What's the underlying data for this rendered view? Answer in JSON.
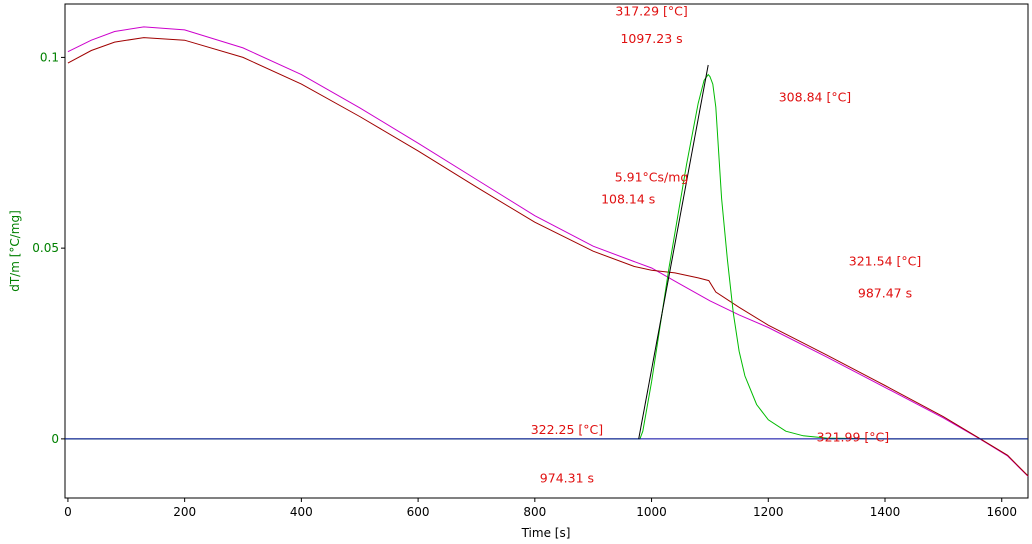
{
  "chart_data": {
    "type": "line",
    "xlabel": "Time [s]",
    "ylabel": "dT/m  [°C/mg]",
    "xlim": [
      -5,
      1645
    ],
    "ylim": [
      -0.0155,
      0.114
    ],
    "x_ticks": [
      0,
      200,
      400,
      600,
      800,
      1000,
      1200,
      1400,
      1600
    ],
    "y_ticks": [
      0,
      0.05,
      0.1
    ],
    "y_tick_labels": [
      "0",
      "0.05",
      "0.1"
    ],
    "grid": false,
    "colors": {
      "magenta": "#cc00cc",
      "darkred": "#a00000",
      "green": "#00bb00",
      "blue": "#0000a0",
      "black": "#000000",
      "annotation": "#e01010",
      "ytick": "#008000"
    },
    "series": [
      {
        "color": "#cc00cc",
        "x": [
          0,
          40,
          80,
          130,
          200,
          300,
          400,
          500,
          600,
          700,
          800,
          900,
          970,
          1000,
          1050,
          1100,
          1150,
          1200,
          1300,
          1400,
          1500,
          1560,
          1610,
          1645
        ],
        "y": [
          0.1015,
          0.1045,
          0.1068,
          0.108,
          0.1072,
          0.1025,
          0.0955,
          0.0868,
          0.0775,
          0.068,
          0.0585,
          0.0505,
          0.0465,
          0.0448,
          0.0405,
          0.0362,
          0.0325,
          0.0292,
          0.0215,
          0.0135,
          0.0055,
          0.0002,
          -0.0045,
          -0.0098
        ]
      },
      {
        "color": "#a00000",
        "x": [
          0,
          40,
          80,
          130,
          200,
          300,
          400,
          500,
          600,
          700,
          800,
          900,
          970,
          1000,
          1040,
          1080,
          1098,
          1110,
          1150,
          1200,
          1300,
          1400,
          1500,
          1560,
          1610,
          1645
        ],
        "y": [
          0.0985,
          0.1018,
          0.104,
          0.1052,
          0.1045,
          0.1,
          0.093,
          0.0845,
          0.0755,
          0.066,
          0.0568,
          0.0492,
          0.0452,
          0.0442,
          0.0435,
          0.0422,
          0.0415,
          0.0385,
          0.0345,
          0.0298,
          0.022,
          0.014,
          0.0058,
          0.0003,
          -0.0043,
          -0.0097
        ]
      },
      {
        "color": "#00bb00",
        "x": [
          -5,
          980,
          985,
          1000,
          1030,
          1060,
          1080,
          1090,
          1097,
          1100,
          1105,
          1110,
          1115,
          1120,
          1130,
          1140,
          1150,
          1160,
          1180,
          1200,
          1230,
          1260,
          1300,
          1400,
          1500,
          1645
        ],
        "y": [
          0,
          0,
          0.002,
          0.015,
          0.045,
          0.072,
          0.088,
          0.094,
          0.0955,
          0.095,
          0.093,
          0.087,
          0.075,
          0.063,
          0.047,
          0.033,
          0.023,
          0.0165,
          0.009,
          0.005,
          0.002,
          0.0008,
          0.0002,
          0,
          0,
          0
        ]
      },
      {
        "color": "#0000a0",
        "x": [
          -5,
          1645
        ],
        "y": [
          0,
          0
        ]
      },
      {
        "color": "#000000",
        "x": [
          978,
          1097
        ],
        "y": [
          0,
          0.098
        ]
      }
    ],
    "annotations": [
      {
        "text": "317.29 [°C]",
        "x": 1000,
        "y": 0.111
      },
      {
        "text": "1097.23 s",
        "x": 1000,
        "y": 0.1038
      },
      {
        "text": "308.84 [°C]",
        "x": 1280,
        "y": 0.0885
      },
      {
        "text": "5.91°Cs/mg",
        "x": 1000,
        "y": 0.0675
      },
      {
        "text": "108.14 s",
        "x": 960,
        "y": 0.0617
      },
      {
        "text": "321.54 [°C]",
        "x": 1400,
        "y": 0.0455
      },
      {
        "text": "987.47 s",
        "x": 1400,
        "y": 0.037
      },
      {
        "text": "322.25 [°C]",
        "x": 855,
        "y": 0.0013
      },
      {
        "text": "321.99 [°C]",
        "x": 1345,
        "y": -0.0007
      },
      {
        "text": "974.31 s",
        "x": 855,
        "y": -0.0115
      }
    ]
  }
}
